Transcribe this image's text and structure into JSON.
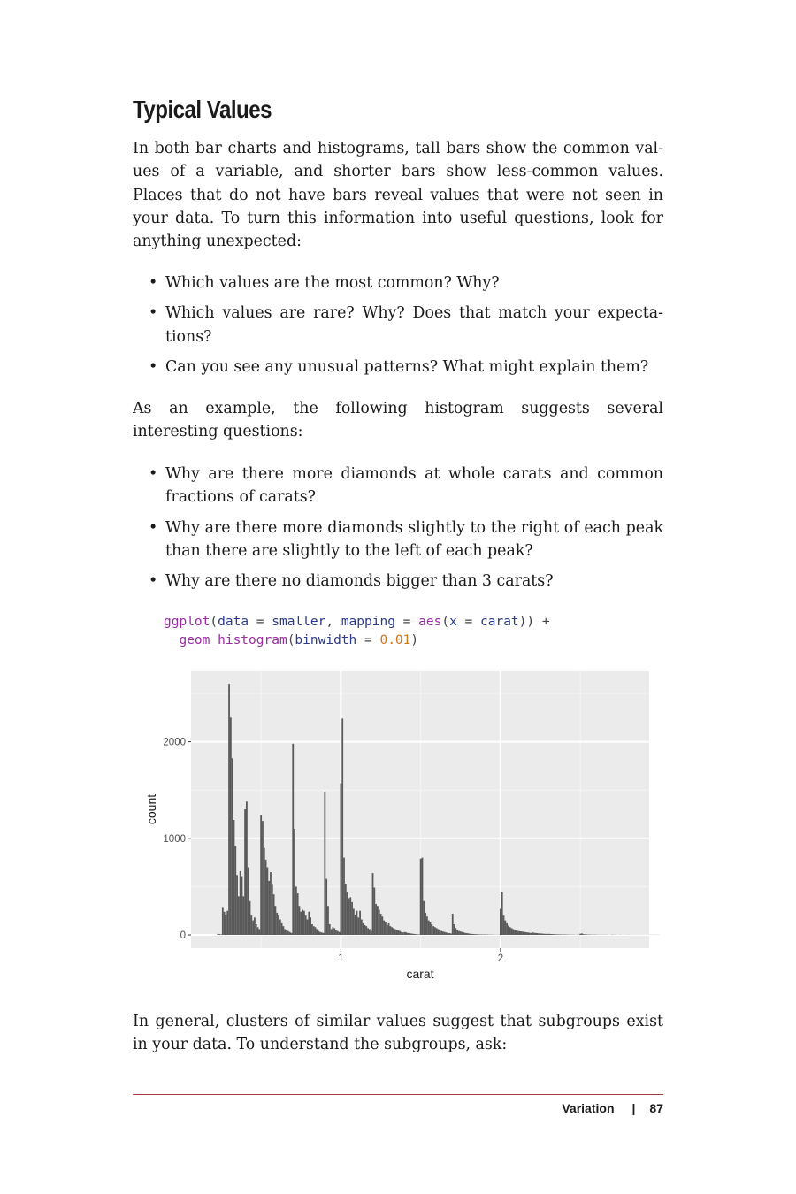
{
  "section": {
    "title": "Typical Values"
  },
  "paragraphs": {
    "p1": "In both bar charts and histograms, tall bars show the common val- ues of a variable, and shorter bars show less-common values. Places that do not have bars reveal values that were not seen in your data. To turn this information into useful questions, look for anything unexpected:",
    "p2": "As an example, the following histogram suggests several interesting questions:",
    "p3": "In general, clusters of similar values suggest that subgroups exist in your data. To understand the subgroups, ask:"
  },
  "bullets1": [
    "Which values are the most common? Why?",
    "Which values are rare? Why? Does that match your expecta- tions?",
    "Can you see any unusual patterns? What might explain them?"
  ],
  "bullets2": [
    "Why are there more diamonds at whole carats and common fractions of carats?",
    "Why are there more diamonds slightly to the right of each peak than there are slightly to the left of each peak?",
    "Why are there no diamonds bigger than 3 carats?"
  ],
  "code": {
    "l1_fn": "ggplot",
    "l1_a": "(",
    "l1_b": "data",
    "l1_c": " = ",
    "l1_d": "smaller",
    "l1_e": ", ",
    "l1_f": "mapping",
    "l1_g": " = ",
    "l1_h": "aes",
    "l1_i": "(",
    "l1_j": "x",
    "l1_k": " = ",
    "l1_l": "carat",
    "l1_m": ")) +",
    "l2_fn": "geom_histogram",
    "l2_a": "(",
    "l2_b": "binwidth",
    "l2_c": " = ",
    "l2_d": "0.01",
    "l2_e": ")"
  },
  "footer": {
    "section": "Variation",
    "separator": "|",
    "page": "87"
  },
  "chart_data": {
    "type": "bar",
    "xlabel": "carat",
    "ylabel": "count",
    "xlim": [
      0.2,
      3.0
    ],
    "ylim": [
      0,
      2600
    ],
    "xticks": [
      "1",
      "2"
    ],
    "yticks": [
      "0",
      "1000",
      "2000"
    ],
    "grid": true,
    "background": "#ebebeb",
    "bar_color": "#595959",
    "binwidth": 0.01,
    "bins": [
      [
        0.23,
        10
      ],
      [
        0.24,
        8
      ],
      [
        0.25,
        5
      ],
      [
        0.26,
        280
      ],
      [
        0.27,
        240
      ],
      [
        0.28,
        210
      ],
      [
        0.29,
        250
      ],
      [
        0.3,
        2600
      ],
      [
        0.31,
        2250
      ],
      [
        0.32,
        1830
      ],
      [
        0.33,
        1190
      ],
      [
        0.34,
        920
      ],
      [
        0.35,
        620
      ],
      [
        0.36,
        400
      ],
      [
        0.37,
        660
      ],
      [
        0.38,
        600
      ],
      [
        0.39,
        400
      ],
      [
        0.4,
        1300
      ],
      [
        0.41,
        1380
      ],
      [
        0.42,
        700
      ],
      [
        0.43,
        350
      ],
      [
        0.44,
        200
      ],
      [
        0.45,
        150
      ],
      [
        0.46,
        180
      ],
      [
        0.47,
        110
      ],
      [
        0.48,
        80
      ],
      [
        0.49,
        60
      ],
      [
        0.5,
        1240
      ],
      [
        0.51,
        1180
      ],
      [
        0.52,
        900
      ],
      [
        0.53,
        780
      ],
      [
        0.54,
        700
      ],
      [
        0.55,
        560
      ],
      [
        0.56,
        650
      ],
      [
        0.57,
        520
      ],
      [
        0.58,
        420
      ],
      [
        0.59,
        300
      ],
      [
        0.6,
        230
      ],
      [
        0.61,
        200
      ],
      [
        0.62,
        160
      ],
      [
        0.63,
        120
      ],
      [
        0.64,
        90
      ],
      [
        0.65,
        60
      ],
      [
        0.66,
        50
      ],
      [
        0.67,
        40
      ],
      [
        0.68,
        30
      ],
      [
        0.69,
        20
      ],
      [
        0.7,
        1980
      ],
      [
        0.71,
        1100
      ],
      [
        0.72,
        500
      ],
      [
        0.73,
        430
      ],
      [
        0.74,
        300
      ],
      [
        0.75,
        240
      ],
      [
        0.76,
        260
      ],
      [
        0.77,
        250
      ],
      [
        0.78,
        200
      ],
      [
        0.79,
        160
      ],
      [
        0.8,
        240
      ],
      [
        0.81,
        180
      ],
      [
        0.82,
        110
      ],
      [
        0.83,
        90
      ],
      [
        0.84,
        80
      ],
      [
        0.85,
        60
      ],
      [
        0.86,
        40
      ],
      [
        0.87,
        30
      ],
      [
        0.88,
        25
      ],
      [
        0.89,
        20
      ],
      [
        0.9,
        1480
      ],
      [
        0.91,
        580
      ],
      [
        0.92,
        300
      ],
      [
        0.93,
        110
      ],
      [
        0.94,
        60
      ],
      [
        0.95,
        80
      ],
      [
        0.96,
        70
      ],
      [
        0.97,
        50
      ],
      [
        0.98,
        40
      ],
      [
        0.99,
        30
      ],
      [
        1.0,
        1570
      ],
      [
        1.01,
        2240
      ],
      [
        1.02,
        800
      ],
      [
        1.03,
        530
      ],
      [
        1.04,
        440
      ],
      [
        1.05,
        380
      ],
      [
        1.06,
        390
      ],
      [
        1.07,
        340
      ],
      [
        1.08,
        270
      ],
      [
        1.09,
        210
      ],
      [
        1.1,
        250
      ],
      [
        1.11,
        180
      ],
      [
        1.12,
        250
      ],
      [
        1.13,
        160
      ],
      [
        1.14,
        120
      ],
      [
        1.15,
        100
      ],
      [
        1.16,
        90
      ],
      [
        1.17,
        70
      ],
      [
        1.18,
        60
      ],
      [
        1.19,
        40
      ],
      [
        1.2,
        640
      ],
      [
        1.21,
        490
      ],
      [
        1.22,
        320
      ],
      [
        1.23,
        300
      ],
      [
        1.24,
        260
      ],
      [
        1.25,
        220
      ],
      [
        1.26,
        190
      ],
      [
        1.27,
        150
      ],
      [
        1.28,
        130
      ],
      [
        1.29,
        100
      ],
      [
        1.3,
        120
      ],
      [
        1.31,
        90
      ],
      [
        1.32,
        80
      ],
      [
        1.33,
        70
      ],
      [
        1.34,
        60
      ],
      [
        1.35,
        50
      ],
      [
        1.36,
        45
      ],
      [
        1.37,
        40
      ],
      [
        1.38,
        30
      ],
      [
        1.39,
        25
      ],
      [
        1.4,
        30
      ],
      [
        1.41,
        25
      ],
      [
        1.42,
        20
      ],
      [
        1.43,
        18
      ],
      [
        1.44,
        15
      ],
      [
        1.45,
        12
      ],
      [
        1.46,
        10
      ],
      [
        1.47,
        8
      ],
      [
        1.48,
        6
      ],
      [
        1.49,
        5
      ],
      [
        1.5,
        790
      ],
      [
        1.51,
        800
      ],
      [
        1.52,
        350
      ],
      [
        1.53,
        230
      ],
      [
        1.54,
        190
      ],
      [
        1.55,
        150
      ],
      [
        1.56,
        130
      ],
      [
        1.57,
        110
      ],
      [
        1.58,
        90
      ],
      [
        1.59,
        80
      ],
      [
        1.6,
        70
      ],
      [
        1.61,
        60
      ],
      [
        1.62,
        50
      ],
      [
        1.63,
        40
      ],
      [
        1.64,
        35
      ],
      [
        1.65,
        30
      ],
      [
        1.66,
        25
      ],
      [
        1.67,
        20
      ],
      [
        1.68,
        18
      ],
      [
        1.69,
        15
      ],
      [
        1.7,
        220
      ],
      [
        1.71,
        110
      ],
      [
        1.72,
        70
      ],
      [
        1.73,
        50
      ],
      [
        1.74,
        40
      ],
      [
        1.75,
        35
      ],
      [
        1.76,
        30
      ],
      [
        1.77,
        25
      ],
      [
        1.78,
        20
      ],
      [
        1.79,
        18
      ],
      [
        1.8,
        15
      ],
      [
        1.81,
        12
      ],
      [
        1.82,
        10
      ],
      [
        1.83,
        9
      ],
      [
        1.84,
        8
      ],
      [
        1.85,
        7
      ],
      [
        1.86,
        6
      ],
      [
        1.87,
        5
      ],
      [
        1.88,
        5
      ],
      [
        1.89,
        4
      ],
      [
        1.9,
        5
      ],
      [
        1.91,
        4
      ],
      [
        1.92,
        4
      ],
      [
        1.93,
        3
      ],
      [
        1.94,
        3
      ],
      [
        1.95,
        3
      ],
      [
        1.96,
        2
      ],
      [
        1.97,
        2
      ],
      [
        1.98,
        2
      ],
      [
        1.99,
        2
      ],
      [
        2.0,
        270
      ],
      [
        2.01,
        440
      ],
      [
        2.02,
        200
      ],
      [
        2.03,
        150
      ],
      [
        2.04,
        120
      ],
      [
        2.05,
        95
      ],
      [
        2.06,
        80
      ],
      [
        2.07,
        70
      ],
      [
        2.08,
        60
      ],
      [
        2.09,
        50
      ],
      [
        2.1,
        45
      ],
      [
        2.11,
        40
      ],
      [
        2.12,
        38
      ],
      [
        2.13,
        35
      ],
      [
        2.14,
        33
      ],
      [
        2.15,
        30
      ],
      [
        2.16,
        28
      ],
      [
        2.17,
        25
      ],
      [
        2.18,
        23
      ],
      [
        2.19,
        20
      ],
      [
        2.2,
        25
      ],
      [
        2.21,
        22
      ],
      [
        2.22,
        20
      ],
      [
        2.23,
        18
      ],
      [
        2.24,
        16
      ],
      [
        2.25,
        15
      ],
      [
        2.26,
        14
      ],
      [
        2.27,
        12
      ],
      [
        2.28,
        11
      ],
      [
        2.29,
        10
      ],
      [
        2.3,
        11
      ],
      [
        2.31,
        10
      ],
      [
        2.32,
        9
      ],
      [
        2.33,
        8
      ],
      [
        2.34,
        7
      ],
      [
        2.35,
        6
      ],
      [
        2.36,
        6
      ],
      [
        2.37,
        5
      ],
      [
        2.38,
        5
      ],
      [
        2.39,
        4
      ],
      [
        2.4,
        5
      ],
      [
        2.41,
        4
      ],
      [
        2.42,
        4
      ],
      [
        2.43,
        3
      ],
      [
        2.44,
        3
      ],
      [
        2.45,
        3
      ],
      [
        2.46,
        3
      ],
      [
        2.47,
        2
      ],
      [
        2.48,
        2
      ],
      [
        2.49,
        2
      ],
      [
        2.5,
        12
      ],
      [
        2.51,
        15
      ],
      [
        2.52,
        8
      ],
      [
        2.53,
        6
      ],
      [
        2.54,
        5
      ],
      [
        2.55,
        4
      ],
      [
        2.56,
        4
      ],
      [
        2.57,
        3
      ],
      [
        2.58,
        3
      ],
      [
        2.59,
        3
      ],
      [
        2.6,
        3
      ],
      [
        2.61,
        2
      ],
      [
        2.62,
        2
      ],
      [
        2.63,
        2
      ],
      [
        2.64,
        2
      ],
      [
        2.65,
        2
      ],
      [
        2.66,
        2
      ],
      [
        2.67,
        2
      ],
      [
        2.68,
        1
      ],
      [
        2.69,
        1
      ],
      [
        2.7,
        3
      ],
      [
        2.71,
        2
      ],
      [
        2.72,
        2
      ],
      [
        2.73,
        1
      ],
      [
        2.74,
        1
      ],
      [
        2.75,
        2
      ],
      [
        2.76,
        1
      ],
      [
        2.77,
        1
      ],
      [
        2.78,
        1
      ],
      [
        2.79,
        1
      ],
      [
        2.8,
        2
      ],
      [
        2.81,
        1
      ],
      [
        2.82,
        1
      ],
      [
        2.83,
        1
      ],
      [
        2.84,
        1
      ],
      [
        2.85,
        1
      ],
      [
        2.86,
        1
      ],
      [
        2.87,
        1
      ],
      [
        2.88,
        1
      ],
      [
        2.89,
        1
      ],
      [
        2.9,
        1
      ],
      [
        2.91,
        1
      ],
      [
        2.92,
        1
      ],
      [
        2.93,
        1
      ],
      [
        2.94,
        1
      ],
      [
        2.95,
        1
      ],
      [
        2.96,
        1
      ],
      [
        2.97,
        1
      ],
      [
        2.98,
        1
      ],
      [
        2.99,
        1
      ]
    ]
  }
}
